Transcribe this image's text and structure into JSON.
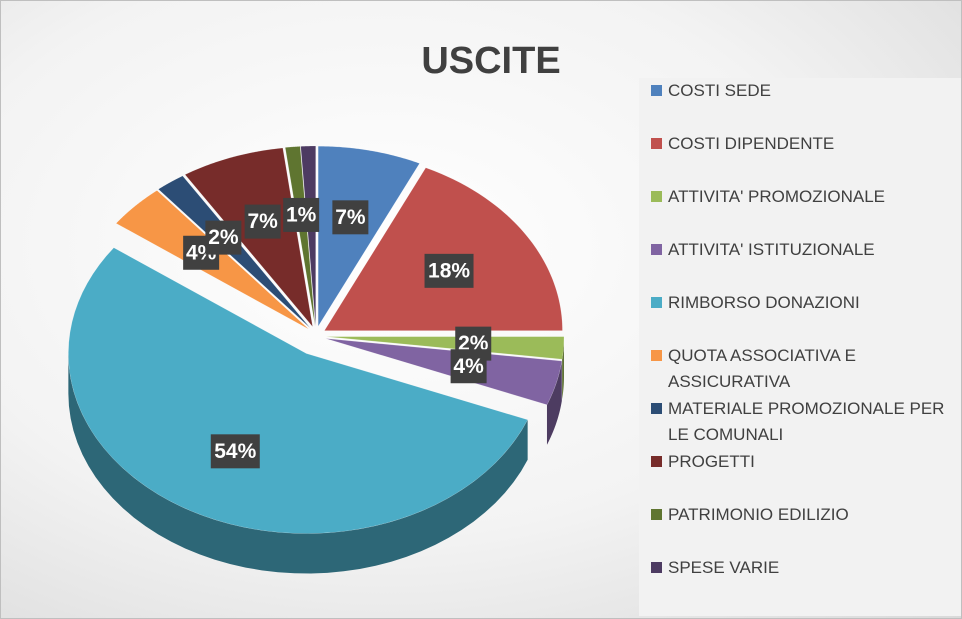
{
  "chart_data": {
    "type": "pie",
    "title": "USCITE",
    "categories": [
      "COSTI SEDE",
      "COSTI DIPENDENTE",
      "ATTIVITA' PROMOZIONALE",
      "ATTIVITA' ISTITUZIONALE",
      "RIMBORSO DONAZIONI",
      "QUOTA ASSOCIATIVA E ASSICURATIVA",
      "MATERIALE PROMOZIONALE PER LE COMUNALI",
      "PROGETTI",
      "PATRIMONIO EDILIZIO",
      "SPESE VARIE"
    ],
    "values": [
      7,
      18,
      2,
      4,
      54,
      4,
      2,
      7,
      1,
      1
    ],
    "value_labels": [
      "7%",
      "18%",
      "2%",
      "4%",
      "54%",
      "4%",
      "2%",
      "7%",
      "1%",
      null
    ],
    "colors": [
      "#4f81bd",
      "#c0504d",
      "#9bbb59",
      "#8064a2",
      "#4bacc6",
      "#f79646",
      "#2c4d75",
      "#772c2a",
      "#5f7530",
      "#4d3b62"
    ],
    "legend": "right"
  }
}
